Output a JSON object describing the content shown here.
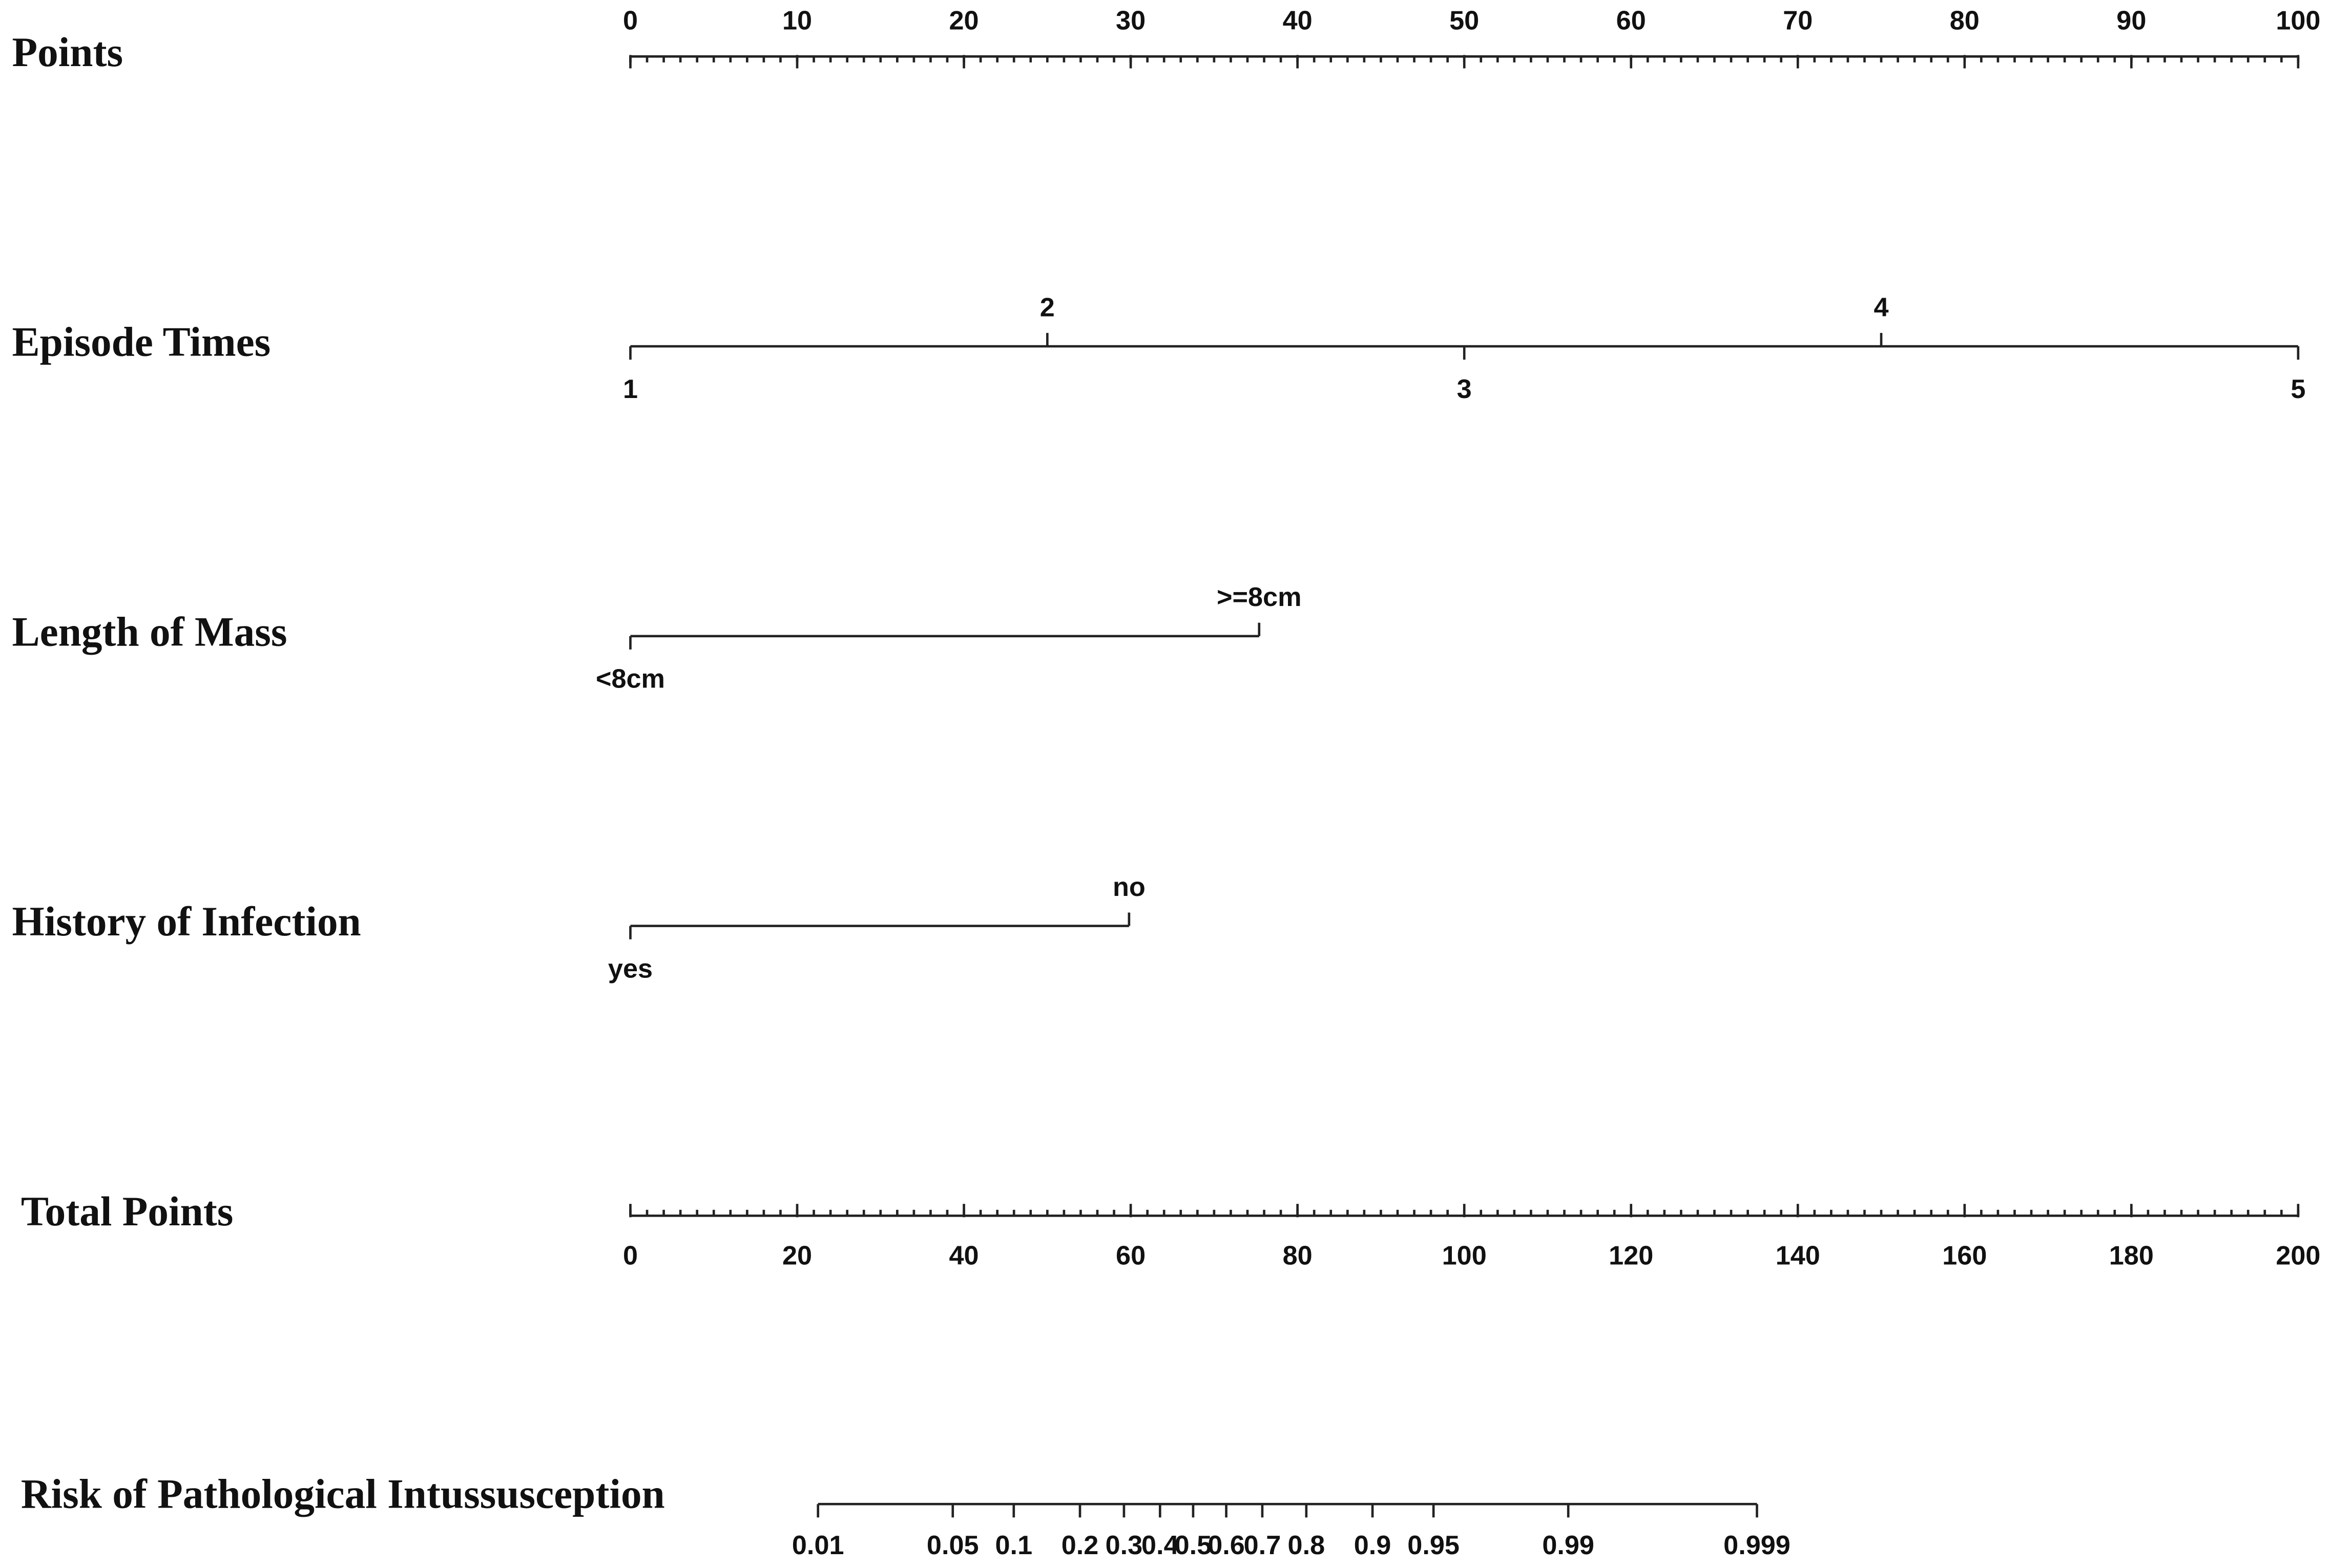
{
  "chart_data": {
    "type": "nomogram",
    "points_axis": {
      "label": "Points",
      "xlim": [
        0,
        100
      ],
      "xticks": [
        0,
        10,
        20,
        30,
        40,
        50,
        60,
        70,
        80,
        90,
        100
      ],
      "minor_tick_step": 1
    },
    "variables": [
      {
        "name": "Episode Times",
        "levels": [
          1,
          2,
          3,
          4,
          5
        ],
        "points": [
          0,
          25,
          50,
          75,
          100
        ]
      },
      {
        "name": "Length of Mass",
        "levels": [
          "<8cm",
          ">=8cm"
        ],
        "points": [
          0,
          37.7
        ]
      },
      {
        "name": "History of Infection",
        "levels": [
          "yes",
          "no"
        ],
        "points": [
          0,
          29.9
        ]
      }
    ],
    "total_points_axis": {
      "label": "Total Points",
      "xlim": [
        0,
        200
      ],
      "xticks": [
        0,
        20,
        40,
        60,
        80,
        100,
        120,
        140,
        160,
        180,
        200
      ],
      "minor_tick_step": 2
    },
    "risk_axis": {
      "label": "Risk of Pathological Intussusception",
      "xticks": [
        0.01,
        0.05,
        0.1,
        0.2,
        0.3,
        0.4,
        0.5,
        0.6,
        0.7,
        0.8,
        0.9,
        0.95,
        0.99,
        0.999
      ],
      "total_points_range": [
        22.5,
        135.1
      ]
    }
  }
}
